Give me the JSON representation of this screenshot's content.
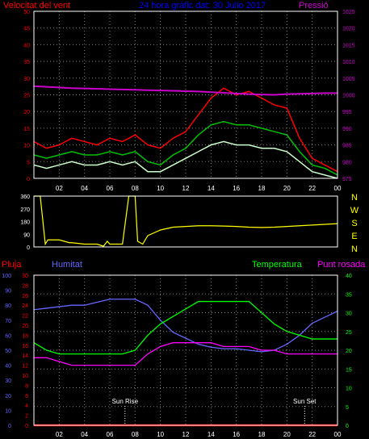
{
  "colors": {
    "background": "#000000",
    "frame": "#ffffff",
    "grid": "#808080",
    "wind_gust": "#ff0000",
    "wind_avg": "#00c000",
    "wind_min": "#ccffcc",
    "pressure": "#cc00cc",
    "direction": "#ffff00",
    "rain": "#ff0000",
    "humidity": "#6666ff",
    "temperature": "#00ff00",
    "dewpoint": "#ff00ff",
    "title": "#0000ff",
    "dir_letters": "#ffff00"
  },
  "x_tick_labels": [
    "02",
    "04",
    "06",
    "08",
    "10",
    "12",
    "14",
    "16",
    "18",
    "20",
    "22",
    "00"
  ],
  "chart_data": [
    {
      "type": "line",
      "id": "wind_pressure",
      "title": "24 hora gràfic dat: 30 Julio 2017",
      "ylabel_left": "Velocitat del vent",
      "ylabel_right": "Pressió",
      "ylim_left": [
        0,
        50
      ],
      "ylim_right": [
        975,
        1025
      ],
      "ticks_left": [
        "0",
        "5",
        "10",
        "15",
        "20",
        "25",
        "30",
        "35",
        "40",
        "45",
        "50"
      ],
      "ticks_right": [
        "975",
        "980",
        "985",
        "990",
        "995",
        "1000",
        "1005",
        "1010",
        "1015",
        "1020",
        "1025"
      ],
      "x_hours": [
        0,
        1,
        2,
        3,
        4,
        5,
        6,
        7,
        8,
        9,
        10,
        11,
        12,
        13,
        14,
        15,
        16,
        17,
        18,
        19,
        20,
        21,
        22,
        23,
        24
      ],
      "series": [
        {
          "key": "gust",
          "axis": "left",
          "values": [
            11,
            9,
            10,
            12,
            11,
            10,
            12,
            11,
            13,
            10,
            9,
            12,
            14,
            19,
            24,
            27,
            25,
            26,
            24,
            22,
            21,
            12,
            6,
            4,
            2
          ]
        },
        {
          "key": "avg",
          "axis": "left",
          "values": [
            7,
            6,
            7,
            8,
            7,
            7,
            8,
            7,
            8,
            5,
            4,
            7,
            9,
            13,
            16,
            17,
            16,
            16,
            15,
            14,
            13,
            8,
            4,
            3,
            1
          ]
        },
        {
          "key": "min",
          "axis": "left",
          "values": [
            4,
            3,
            4,
            5,
            4,
            4,
            5,
            4,
            5,
            2,
            2,
            4,
            6,
            8,
            10,
            11,
            10,
            10,
            9,
            9,
            8,
            5,
            2,
            1,
            0
          ]
        },
        {
          "key": "pressure",
          "axis": "right",
          "values": [
            1002.6,
            1002.4,
            1002.2,
            1002.0,
            1001.9,
            1001.8,
            1001.7,
            1001.6,
            1001.5,
            1001.4,
            1001.3,
            1001.2,
            1001.1,
            1001.0,
            1000.8,
            1000.6,
            1000.4,
            1000.2,
            1000.1,
            1000.0,
            1000.2,
            1000.3,
            1000.4,
            1000.5,
            1000.5
          ]
        }
      ]
    },
    {
      "type": "line",
      "id": "wind_direction",
      "ylim": [
        0,
        360
      ],
      "ticks": [
        "0",
        "90",
        "180",
        "270",
        "360"
      ],
      "direction_letters": [
        "N",
        "W",
        "S",
        "E",
        "N"
      ],
      "x_hours": [
        0,
        0.5,
        0.9,
        1.1,
        2,
        2.8,
        3,
        4,
        5,
        5.5,
        5.8,
        6,
        7,
        7.5,
        8,
        8.2,
        8.6,
        9,
        9.5,
        10,
        11,
        12,
        13,
        14,
        15,
        16,
        17,
        18,
        19,
        20,
        21,
        22,
        23,
        24
      ],
      "values": [
        360,
        360,
        20,
        50,
        50,
        30,
        30,
        20,
        20,
        5,
        40,
        20,
        20,
        360,
        360,
        40,
        20,
        80,
        100,
        120,
        140,
        145,
        150,
        150,
        148,
        145,
        140,
        138,
        140,
        145,
        150,
        155,
        160,
        165
      ]
    },
    {
      "type": "line",
      "id": "rain_humidity_temp_dew",
      "ylabel_rain": "Pluja",
      "ylabel_humidity": "Humitat",
      "ylabel_temperature": "Temperatura",
      "ylabel_dewpoint": "Punt rosada",
      "ticks_rain": [
        "0",
        "10",
        "20",
        "30",
        "40",
        "50",
        "60",
        "70",
        "80",
        "90",
        "100"
      ],
      "ticks_humidity": [
        "0",
        "2",
        "4",
        "6",
        "8",
        "10",
        "12",
        "14",
        "16",
        "18",
        "20",
        "22",
        "24",
        "26",
        "28",
        "30"
      ],
      "ticks_temp": [
        "0",
        "5",
        "10",
        "15",
        "20",
        "25",
        "30",
        "35",
        "40"
      ],
      "ylim_rain": [
        0,
        100
      ],
      "ylim_temp": [
        0,
        40
      ],
      "x_hours": [
        0,
        1,
        2,
        3,
        4,
        5,
        6,
        7,
        8,
        9,
        10,
        11,
        12,
        13,
        14,
        15,
        16,
        17,
        18,
        19,
        20,
        21,
        22,
        23,
        24
      ],
      "series": [
        {
          "key": "rain",
          "axis": "rain",
          "values": [
            0,
            0,
            0,
            0,
            0,
            0,
            0,
            0,
            0,
            0,
            0,
            0,
            0,
            0,
            0,
            0,
            0,
            0,
            0,
            0,
            0,
            0,
            0,
            0,
            0
          ]
        },
        {
          "key": "humidity",
          "axis": "rain",
          "values": [
            77,
            78,
            79,
            80,
            80,
            82,
            84,
            84,
            84,
            80,
            70,
            62,
            58,
            54,
            52,
            51,
            51,
            50,
            49,
            50,
            54,
            60,
            68,
            72,
            76
          ]
        },
        {
          "key": "temperature",
          "axis": "temp",
          "values": [
            22,
            20,
            19,
            19,
            19,
            19,
            19,
            19,
            20,
            24,
            27,
            29,
            31,
            33,
            33,
            33,
            33,
            33,
            30,
            27,
            25,
            24,
            23,
            23,
            23
          ]
        },
        {
          "key": "dewpoint",
          "axis": "temp",
          "values": [
            18,
            18,
            17,
            16,
            16,
            16,
            16,
            16,
            16,
            19,
            21,
            22,
            22,
            22,
            22,
            21,
            21,
            21,
            20,
            20,
            19,
            19,
            19,
            19,
            19
          ]
        }
      ],
      "annotations": [
        {
          "label": "Sun Rise",
          "hour": 7.2
        },
        {
          "label": "Sun Set",
          "hour": 21.4
        }
      ]
    }
  ]
}
